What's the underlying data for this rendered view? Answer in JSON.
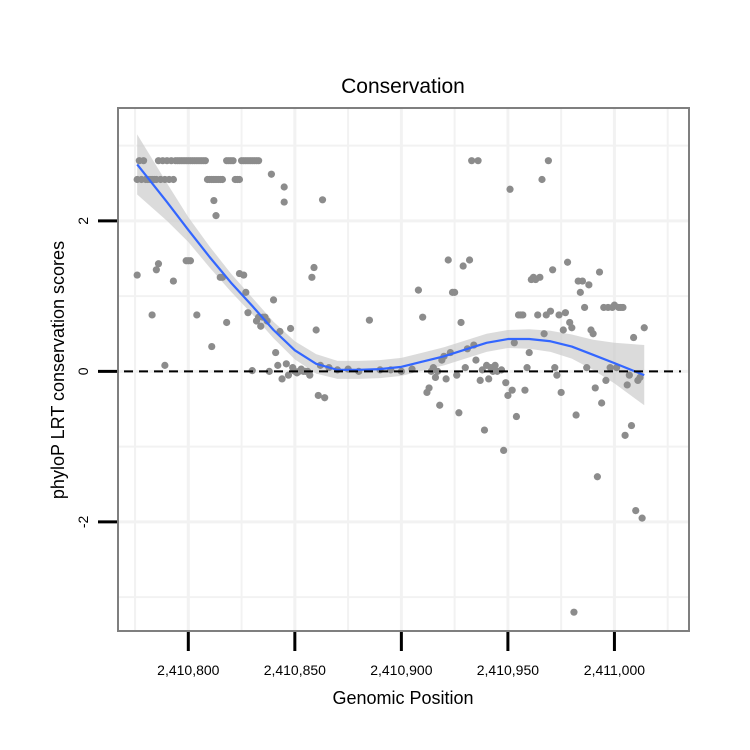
{
  "chart_data": {
    "type": "scatter",
    "title": "Conservation",
    "xlabel": "Genomic Position",
    "ylabel": "phyloP LRT conservation scores",
    "xlim": [
      2410767,
      2411035
    ],
    "ylim": [
      -3.45,
      3.5
    ],
    "x_ticks": [
      {
        "value": 2410800,
        "label": "2,410,800"
      },
      {
        "value": 2410850,
        "label": "2,410,850"
      },
      {
        "value": 2410900,
        "label": "2,410,900"
      },
      {
        "value": 2410950,
        "label": "2,410,950"
      },
      {
        "value": 2411000,
        "label": "2,411,000"
      }
    ],
    "y_ticks": [
      {
        "value": -2,
        "label": "-2"
      },
      {
        "value": 0,
        "label": "0"
      },
      {
        "value": 2,
        "label": "2"
      }
    ],
    "reference_line": {
      "y": 0,
      "style": "dashed"
    },
    "colors": {
      "points": "#8c8c8c",
      "smooth": "#3366ff",
      "band": "#cccccc",
      "grid": "#f2f2f2",
      "border": "#7f7f7f"
    },
    "points": [
      [
        2410776,
        2.55
      ],
      [
        2410777,
        2.8
      ],
      [
        2410778,
        2.55
      ],
      [
        2410779,
        2.8
      ],
      [
        2410780,
        2.55
      ],
      [
        2410781,
        2.55
      ],
      [
        2410782,
        2.55
      ],
      [
        2410783,
        2.55
      ],
      [
        2410784,
        2.55
      ],
      [
        2410785,
        2.55
      ],
      [
        2410786,
        2.8
      ],
      [
        2410787,
        2.55
      ],
      [
        2410788,
        2.8
      ],
      [
        2410789,
        2.55
      ],
      [
        2410790,
        2.8
      ],
      [
        2410791,
        2.55
      ],
      [
        2410792,
        2.8
      ],
      [
        2410793,
        2.55
      ],
      [
        2410794,
        2.8
      ],
      [
        2410795,
        2.8
      ],
      [
        2410796,
        2.8
      ],
      [
        2410797,
        2.8
      ],
      [
        2410798,
        2.8
      ],
      [
        2410799,
        2.8
      ],
      [
        2410800,
        2.8
      ],
      [
        2410801,
        2.8
      ],
      [
        2410802,
        2.8
      ],
      [
        2410803,
        2.8
      ],
      [
        2410804,
        2.8
      ],
      [
        2410805,
        2.8
      ],
      [
        2410806,
        2.8
      ],
      [
        2410807,
        2.8
      ],
      [
        2410808,
        2.8
      ],
      [
        2410809,
        2.55
      ],
      [
        2410810,
        2.55
      ],
      [
        2410811,
        2.55
      ],
      [
        2410812,
        2.55
      ],
      [
        2410813,
        2.55
      ],
      [
        2410814,
        2.55
      ],
      [
        2410815,
        2.55
      ],
      [
        2410816,
        2.55
      ],
      [
        2410818,
        2.8
      ],
      [
        2410819,
        2.8
      ],
      [
        2410820,
        2.8
      ],
      [
        2410821,
        2.8
      ],
      [
        2410822,
        2.55
      ],
      [
        2410823,
        2.55
      ],
      [
        2410824,
        2.55
      ],
      [
        2410825,
        2.8
      ],
      [
        2410826,
        2.8
      ],
      [
        2410827,
        2.8
      ],
      [
        2410828,
        2.8
      ],
      [
        2410829,
        2.8
      ],
      [
        2410830,
        2.8
      ],
      [
        2410831,
        2.8
      ],
      [
        2410832,
        2.8
      ],
      [
        2410833,
        2.8
      ],
      [
        2410776,
        1.28
      ],
      [
        2410783,
        0.75
      ],
      [
        2410785,
        1.35
      ],
      [
        2410786,
        1.43
      ],
      [
        2410789,
        0.08
      ],
      [
        2410793,
        1.2
      ],
      [
        2410799,
        1.47
      ],
      [
        2410800,
        1.47
      ],
      [
        2410801,
        1.47
      ],
      [
        2410804,
        0.75
      ],
      [
        2410811,
        0.33
      ],
      [
        2410812,
        2.27
      ],
      [
        2410813,
        2.07
      ],
      [
        2410815,
        1.25
      ],
      [
        2410816,
        1.25
      ],
      [
        2410818,
        0.65
      ],
      [
        2410824,
        1.3
      ],
      [
        2410826,
        1.28
      ],
      [
        2410827,
        1.05
      ],
      [
        2410828,
        0.78
      ],
      [
        2410830,
        0.01
      ],
      [
        2410832,
        0.67
      ],
      [
        2410833,
        0.72
      ],
      [
        2410834,
        0.6
      ],
      [
        2410835,
        0.72
      ],
      [
        2410836,
        0.72
      ],
      [
        2410837,
        0.67
      ],
      [
        2410838,
        0.0
      ],
      [
        2410839,
        2.62
      ],
      [
        2410840,
        0.95
      ],
      [
        2410841,
        0.25
      ],
      [
        2410842,
        0.08
      ],
      [
        2410843,
        0.53
      ],
      [
        2410844,
        -0.1
      ],
      [
        2410845,
        2.25
      ],
      [
        2410845,
        2.45
      ],
      [
        2410846,
        0.1
      ],
      [
        2410847,
        -0.05
      ],
      [
        2410848,
        0.57
      ],
      [
        2410849,
        0.05
      ],
      [
        2410850,
        0.0
      ],
      [
        2410851,
        -0.02
      ],
      [
        2410852,
        0.0
      ],
      [
        2410853,
        0.03
      ],
      [
        2410854,
        0.0
      ],
      [
        2410855,
        0.0
      ],
      [
        2410856,
        0.0
      ],
      [
        2410857,
        -0.05
      ],
      [
        2410858,
        1.25
      ],
      [
        2410859,
        1.38
      ],
      [
        2410860,
        0.55
      ],
      [
        2410861,
        -0.32
      ],
      [
        2410862,
        0.08
      ],
      [
        2410863,
        2.28
      ],
      [
        2410864,
        -0.35
      ],
      [
        2410866,
        0.05
      ],
      [
        2410870,
        0.02
      ],
      [
        2410875,
        0.03
      ],
      [
        2410880,
        0.0
      ],
      [
        2410885,
        0.68
      ],
      [
        2410890,
        0.02
      ],
      [
        2410895,
        0.02
      ],
      [
        2410900,
        0.0
      ],
      [
        2410905,
        0.03
      ],
      [
        2410908,
        1.08
      ],
      [
        2410910,
        0.72
      ],
      [
        2410912,
        -0.28
      ],
      [
        2410913,
        -0.22
      ],
      [
        2410914,
        0.0
      ],
      [
        2410915,
        0.05
      ],
      [
        2410916,
        -0.08
      ],
      [
        2410917,
        0.0
      ],
      [
        2410918,
        -0.45
      ],
      [
        2410919,
        0.15
      ],
      [
        2410920,
        0.2
      ],
      [
        2410921,
        -0.1
      ],
      [
        2410922,
        1.48
      ],
      [
        2410923,
        0.25
      ],
      [
        2410924,
        1.05
      ],
      [
        2410925,
        1.05
      ],
      [
        2410926,
        -0.05
      ],
      [
        2410927,
        -0.55
      ],
      [
        2410928,
        0.65
      ],
      [
        2410929,
        1.4
      ],
      [
        2410930,
        0.05
      ],
      [
        2410931,
        0.3
      ],
      [
        2410932,
        1.48
      ],
      [
        2410933,
        2.8
      ],
      [
        2410934,
        0.35
      ],
      [
        2410935,
        0.15
      ],
      [
        2410936,
        2.8
      ],
      [
        2410937,
        -0.12
      ],
      [
        2410938,
        0.02
      ],
      [
        2410939,
        -0.78
      ],
      [
        2410940,
        0.08
      ],
      [
        2410941,
        -0.1
      ],
      [
        2410942,
        0.05
      ],
      [
        2410943,
        0.0
      ],
      [
        2410944,
        0.08
      ],
      [
        2410945,
        0.0
      ],
      [
        2410947,
        0.02
      ],
      [
        2410948,
        -1.05
      ],
      [
        2410949,
        -0.15
      ],
      [
        2410950,
        -0.32
      ],
      [
        2410951,
        2.42
      ],
      [
        2410952,
        -0.25
      ],
      [
        2410953,
        0.38
      ],
      [
        2410954,
        -0.6
      ],
      [
        2410955,
        0.75
      ],
      [
        2410956,
        0.75
      ],
      [
        2410957,
        0.75
      ],
      [
        2410958,
        -0.25
      ],
      [
        2410959,
        0.05
      ],
      [
        2410960,
        0.25
      ],
      [
        2410961,
        1.22
      ],
      [
        2410962,
        1.25
      ],
      [
        2410963,
        1.22
      ],
      [
        2410964,
        0.75
      ],
      [
        2410965,
        1.25
      ],
      [
        2410966,
        2.55
      ],
      [
        2410967,
        0.5
      ],
      [
        2410968,
        0.75
      ],
      [
        2410969,
        2.8
      ],
      [
        2410970,
        0.8
      ],
      [
        2410971,
        1.35
      ],
      [
        2410972,
        0.05
      ],
      [
        2410973,
        -0.05
      ],
      [
        2410974,
        0.75
      ],
      [
        2410975,
        -0.28
      ],
      [
        2410976,
        0.55
      ],
      [
        2410977,
        0.78
      ],
      [
        2410978,
        1.45
      ],
      [
        2410979,
        0.65
      ],
      [
        2410980,
        0.58
      ],
      [
        2410981,
        -3.2
      ],
      [
        2410982,
        -0.58
      ],
      [
        2410983,
        1.2
      ],
      [
        2410984,
        1.05
      ],
      [
        2410985,
        1.2
      ],
      [
        2410986,
        0.85
      ],
      [
        2410987,
        0.05
      ],
      [
        2410988,
        1.15
      ],
      [
        2410989,
        0.55
      ],
      [
        2410990,
        0.5
      ],
      [
        2410991,
        -0.22
      ],
      [
        2410992,
        -1.4
      ],
      [
        2410993,
        1.32
      ],
      [
        2410994,
        -0.42
      ],
      [
        2410995,
        0.85
      ],
      [
        2410996,
        -0.12
      ],
      [
        2410997,
        0.85
      ],
      [
        2410998,
        0.05
      ],
      [
        2410999,
        0.85
      ],
      [
        2411000,
        0.88
      ],
      [
        2411001,
        0.05
      ],
      [
        2411002,
        0.85
      ],
      [
        2411003,
        0.85
      ],
      [
        2411004,
        0.85
      ],
      [
        2411005,
        -0.85
      ],
      [
        2411006,
        -0.18
      ],
      [
        2411007,
        -0.05
      ],
      [
        2411008,
        -0.72
      ],
      [
        2411009,
        0.45
      ],
      [
        2411010,
        -1.85
      ],
      [
        2411011,
        -0.12
      ],
      [
        2411012,
        -0.08
      ],
      [
        2411013,
        -1.95
      ],
      [
        2411014,
        0.58
      ]
    ],
    "smooth": [
      [
        2410776,
        2.75
      ],
      [
        2410790,
        2.25
      ],
      [
        2410800,
        1.88
      ],
      [
        2410810,
        1.52
      ],
      [
        2410820,
        1.18
      ],
      [
        2410830,
        0.87
      ],
      [
        2410840,
        0.55
      ],
      [
        2410850,
        0.28
      ],
      [
        2410860,
        0.1
      ],
      [
        2410870,
        0.02
      ],
      [
        2410880,
        0.02
      ],
      [
        2410890,
        0.03
      ],
      [
        2410900,
        0.06
      ],
      [
        2410910,
        0.13
      ],
      [
        2410920,
        0.2
      ],
      [
        2410930,
        0.29
      ],
      [
        2410940,
        0.38
      ],
      [
        2410950,
        0.43
      ],
      [
        2410960,
        0.43
      ],
      [
        2410970,
        0.4
      ],
      [
        2410980,
        0.33
      ],
      [
        2410990,
        0.22
      ],
      [
        2411000,
        0.11
      ],
      [
        2411014,
        -0.05
      ]
    ],
    "band": [
      [
        2410776,
        3.15,
        2.35
      ],
      [
        2410790,
        2.5,
        2.0
      ],
      [
        2410800,
        2.05,
        1.72
      ],
      [
        2410810,
        1.66,
        1.38
      ],
      [
        2410820,
        1.3,
        1.06
      ],
      [
        2410830,
        0.98,
        0.76
      ],
      [
        2410840,
        0.66,
        0.44
      ],
      [
        2410850,
        0.4,
        0.16
      ],
      [
        2410860,
        0.23,
        -0.03
      ],
      [
        2410870,
        0.14,
        -0.1
      ],
      [
        2410880,
        0.14,
        -0.1
      ],
      [
        2410890,
        0.15,
        -0.09
      ],
      [
        2410900,
        0.18,
        -0.06
      ],
      [
        2410910,
        0.25,
        0.01
      ],
      [
        2410920,
        0.32,
        0.08
      ],
      [
        2410930,
        0.41,
        0.17
      ],
      [
        2410940,
        0.5,
        0.26
      ],
      [
        2410950,
        0.55,
        0.31
      ],
      [
        2410960,
        0.56,
        0.3
      ],
      [
        2410970,
        0.54,
        0.26
      ],
      [
        2410980,
        0.49,
        0.17
      ],
      [
        2410990,
        0.42,
        0.02
      ],
      [
        2411000,
        0.38,
        -0.16
      ],
      [
        2411014,
        0.35,
        -0.45
      ]
    ]
  }
}
